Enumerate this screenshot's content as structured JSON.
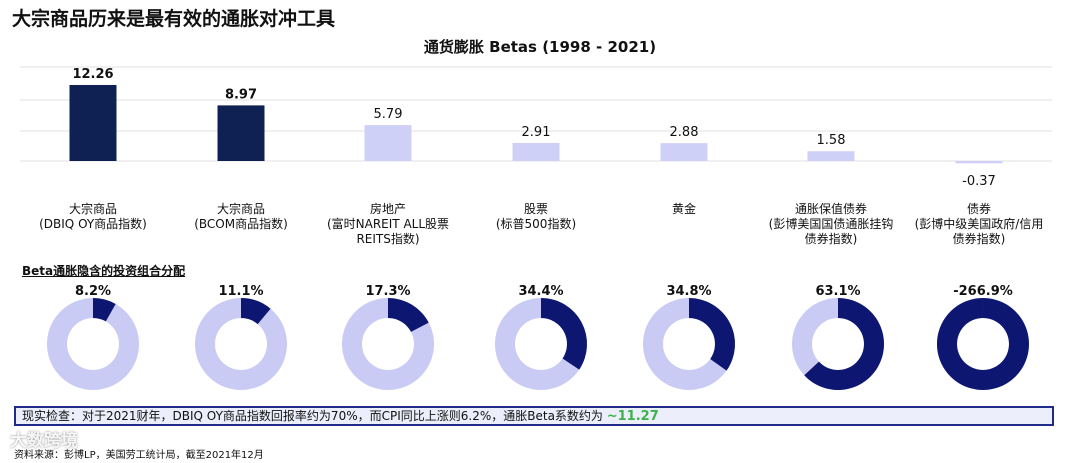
{
  "title": "大宗商品历来是最有效的通胀对冲工具",
  "chart_data": {
    "type": "bar",
    "title": "通货膨胀 Betas  (1998 - 2021)",
    "categories": [
      [
        "大宗商品",
        "(DBIQ OY商品指数)"
      ],
      [
        "大宗商品",
        "(BCOM商品指数)"
      ],
      [
        "房地产",
        "(富时NAREIT ALL股票",
        "REITS指数)"
      ],
      [
        "股票",
        "(标普500指数)"
      ],
      [
        "黄金"
      ],
      [
        "通胀保值债券",
        "(彭博美国国债通胀挂钩",
        "债券指数)"
      ],
      [
        "债券",
        "(彭博中级美国政府/信用",
        "债券指数)"
      ]
    ],
    "values": [
      12.26,
      8.97,
      5.79,
      2.91,
      2.88,
      1.58,
      -0.37
    ],
    "value_labels": [
      "12.26",
      "8.97",
      "5.79",
      "2.91",
      "2.88",
      "1.58",
      "-0.37"
    ],
    "highlight": [
      true,
      true,
      false,
      false,
      false,
      false,
      false
    ],
    "ylim": [
      -1,
      15
    ],
    "grid": true,
    "colors": {
      "highlight": "#0f2152",
      "normal": "#cfd0f7"
    }
  },
  "allocation": {
    "label": "Beta通胀隐含的投资组合分配",
    "percents": [
      8.2,
      11.1,
      17.3,
      34.4,
      34.8,
      63.1,
      -266.9
    ],
    "labels": [
      "8.2%",
      "11.1%",
      "17.3%",
      "34.4%",
      "34.8%",
      "63.1%",
      "-266.9%"
    ],
    "colors": {
      "fill": "#0d1670",
      "rest": "#c9cbf5"
    }
  },
  "reality": {
    "text": "现实检查：对于2021财年，DBIQ OY商品指数回报率约为70%，而CPI同比上涨则6.2%，通胀Beta系数约为 ",
    "highlight": "~11.27"
  },
  "source": "资料来源：彭博LP，美国劳工统计局，截至2021年12月",
  "watermark": "大数跨境"
}
